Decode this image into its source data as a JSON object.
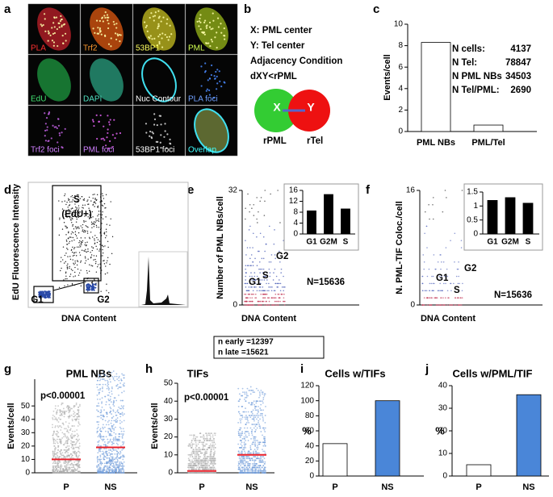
{
  "panel_labels": [
    "a",
    "b",
    "c",
    "d",
    "e",
    "f",
    "g",
    "h",
    "i",
    "j"
  ],
  "image_panel": {
    "labels": [
      "PLA",
      "Trf2",
      "53BP1",
      "PML",
      "EdU",
      "DAPI",
      "Nuc Contour",
      "PLA foci",
      "Trf2 foci",
      "PML foci",
      "53BP1 foci",
      "Overlap"
    ]
  },
  "diagram": {
    "lines": [
      "X: PML center",
      "Y: Tel center",
      "Adjacency Condition",
      "dXY<rPML"
    ],
    "x": "X",
    "y": "Y",
    "r_pml": "rPML",
    "r_tel": "rTel"
  },
  "panel_d": {
    "ylabel": "EdU Fluorescence Intensity",
    "xlabel": "DNA Content",
    "gates": [
      "S",
      "(EdU+)",
      "G1",
      "G2"
    ]
  },
  "counts_box": [
    "n early =12397",
    "n late   =15621"
  ],
  "chart_data": [
    {
      "type": "bar",
      "ylabel": "Events/cell",
      "categories": [
        "PML NBs",
        "PML/Tel"
      ],
      "values": [
        8.3,
        0.6
      ],
      "color": "#ffffff",
      "ylim": [
        0,
        10
      ],
      "yticks": [
        0,
        2,
        4,
        6,
        8,
        10
      ],
      "stats": [
        {
          "label": "N cells:",
          "value": 4137
        },
        {
          "label": "N Tel:",
          "value": 78847
        },
        {
          "label": "N PML NBs",
          "value": 34503
        },
        {
          "label": "N Tel/PML:",
          "value": 2690
        }
      ]
    },
    {
      "type": "bar",
      "categories": [
        "G1",
        "G2M",
        "S"
      ],
      "values": [
        8.5,
        14.5,
        9.2
      ],
      "color": "#000000",
      "ylim": [
        0,
        16
      ],
      "yticks": [
        0,
        4,
        8,
        12,
        16
      ]
    },
    {
      "type": "bar",
      "categories": [
        "G1",
        "G2M",
        "S"
      ],
      "values": [
        1.2,
        1.3,
        1.1
      ],
      "color": "#000000",
      "ylim": [
        0,
        1.5
      ],
      "yticks": [
        0,
        0.5,
        1,
        1.5
      ]
    },
    {
      "type": "strip",
      "title": "PML NBs",
      "annotation": "p<0.00001",
      "ylabel": "Events/cell",
      "categories": [
        "P",
        "NS"
      ],
      "medians": [
        10,
        19
      ],
      "colors": [
        "#a8a8a8",
        "#6d9ad8"
      ],
      "median_color": "#e8202a",
      "ylim": [
        0,
        70
      ],
      "yticks": [
        0,
        10,
        20,
        30,
        40,
        50
      ]
    },
    {
      "type": "strip",
      "title": "TIFs",
      "annotation": "p<0.00001",
      "ylabel": "Events/cell",
      "categories": [
        "P",
        "NS"
      ],
      "medians": [
        1,
        10
      ],
      "colors": [
        "#a8a8a8",
        "#6d9ad8"
      ],
      "median_color": "#e8202a",
      "ylim": [
        0,
        50
      ],
      "yticks": [
        0,
        10,
        20,
        30,
        40,
        50
      ]
    },
    {
      "type": "bar",
      "title": "Cells w/TIFs",
      "ylabel": "%",
      "categories": [
        "P",
        "NS"
      ],
      "values": [
        43,
        100
      ],
      "colors": [
        "#ffffff",
        "#4a86d8"
      ],
      "ylim": [
        0,
        120
      ],
      "yticks": [
        0,
        20,
        40,
        60,
        80,
        100,
        120
      ]
    },
    {
      "type": "bar",
      "title": "Cells w/PML/TIF",
      "ylabel": "%",
      "categories": [
        "P",
        "NS"
      ],
      "values": [
        5,
        36
      ],
      "colors": [
        "#ffffff",
        "#4a86d8"
      ],
      "ylim": [
        0,
        40
      ],
      "yticks": [
        0,
        10,
        20,
        30,
        40
      ]
    },
    {
      "type": "scatter",
      "ylabel": "Number of PML NBs/cell",
      "xlabel": "DNA Content",
      "ylim": [
        0,
        32
      ],
      "yticks": [
        0,
        32
      ],
      "annotations": [
        "G1",
        "S",
        "G2",
        "N=15636"
      ]
    },
    {
      "type": "scatter",
      "ylabel": "N. PML-TIF Coloc./cell",
      "xlabel": "DNA Content",
      "ylim": [
        0,
        16
      ],
      "yticks": [
        0,
        16
      ],
      "annotations": [
        "G1",
        "S",
        "G2",
        "N=15636"
      ]
    }
  ]
}
